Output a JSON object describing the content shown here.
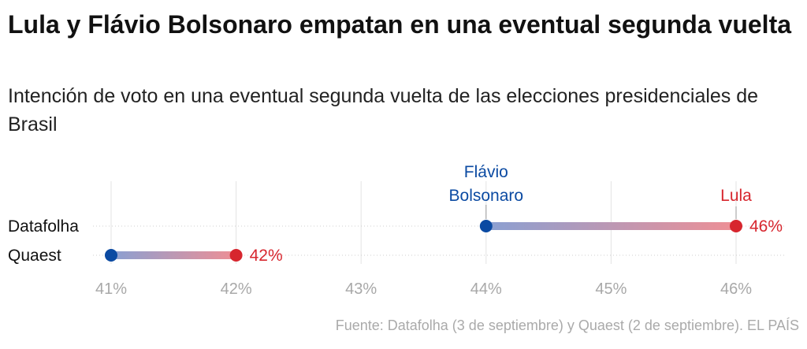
{
  "header": {
    "title": "Lula y Flávio Bolsonaro empatan en una eventual segunda vuelta",
    "subtitle": "Intención de voto en una eventual segunda vuelta de las elecciones presidenciales de Brasil"
  },
  "footer": {
    "source": "Fuente: Datafolha (3 de septiembre) y Quaest (2 de septiembre). EL PAÍS"
  },
  "chart_data": {
    "type": "dumbbell",
    "categories": [
      "Datafolha",
      "Quaest"
    ],
    "series": [
      {
        "name": "Flávio Bolsonaro",
        "label_lines": [
          "Flávio",
          "Bolsonaro"
        ],
        "color": "#0b4aa2",
        "values": [
          44,
          41
        ]
      },
      {
        "name": "Lula",
        "label_lines": [
          "Lula"
        ],
        "color": "#d7262e",
        "values": [
          46,
          42
        ]
      }
    ],
    "value_labels": [
      {
        "row": 0,
        "series": 1,
        "text": "46%"
      },
      {
        "row": 1,
        "series": 1,
        "text": "42%"
      }
    ],
    "xlim": [
      41,
      46
    ],
    "xticks": [
      41,
      42,
      43,
      44,
      45,
      46
    ],
    "xtick_labels": [
      "41%",
      "42%",
      "43%",
      "44%",
      "45%",
      "46%"
    ],
    "grid": true
  }
}
